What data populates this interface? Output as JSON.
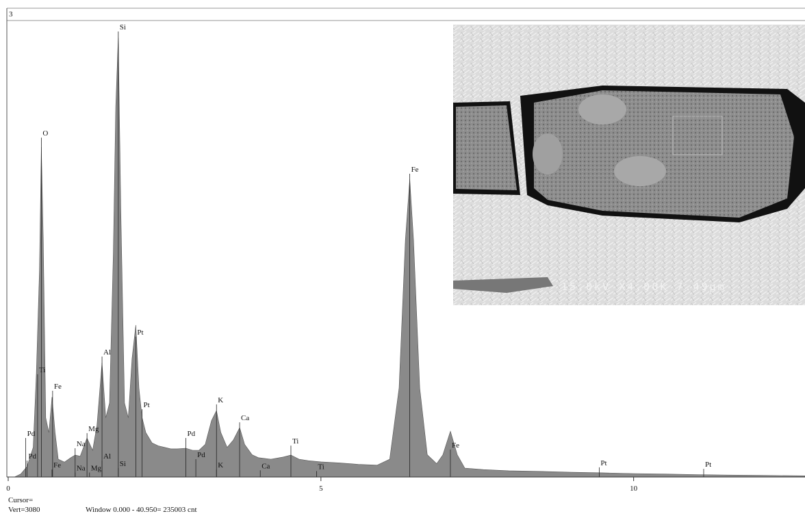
{
  "chart_data": {
    "type": "area",
    "title": "3",
    "color": "#8a8a8a",
    "x": [
      0.1,
      0.2,
      0.3,
      0.4,
      0.45,
      0.5,
      0.53,
      0.56,
      0.6,
      0.65,
      0.7,
      0.75,
      0.8,
      0.9,
      1.0,
      1.07,
      1.15,
      1.26,
      1.35,
      1.42,
      1.5,
      1.56,
      1.62,
      1.68,
      1.72,
      1.76,
      1.8,
      1.86,
      1.92,
      1.98,
      2.04,
      2.09,
      2.14,
      2.2,
      2.3,
      2.4,
      2.5,
      2.6,
      2.7,
      2.84,
      2.95,
      3.05,
      3.15,
      3.25,
      3.33,
      3.4,
      3.5,
      3.6,
      3.7,
      3.78,
      3.9,
      4.0,
      4.2,
      4.4,
      4.52,
      4.65,
      4.8,
      5.0,
      5.3,
      5.6,
      5.9,
      6.1,
      6.25,
      6.35,
      6.42,
      6.48,
      6.58,
      6.7,
      6.85,
      6.95,
      7.07,
      7.18,
      7.3,
      7.6,
      8.0,
      8.5,
      9.0,
      9.5,
      10.0,
      10.5,
      11.0,
      11.5,
      12.0,
      12.5,
      12.74
    ],
    "values": [
      0,
      20,
      70,
      200,
      700,
      1400,
      2226,
      1600,
      400,
      300,
      540,
      300,
      120,
      100,
      130,
      148,
      140,
      263,
      180,
      350,
      771,
      400,
      500,
      1500,
      2500,
      2965,
      1800,
      500,
      400,
      800,
      1025,
      600,
      402,
      300,
      230,
      210,
      200,
      190,
      190,
      194,
      180,
      180,
      220,
      380,
      448,
      300,
      200,
      250,
      333,
      220,
      150,
      130,
      120,
      135,
      148,
      120,
      110,
      102,
      95,
      85,
      80,
      120,
      600,
      1600,
      2009,
      1600,
      600,
      150,
      90,
      150,
      309,
      150,
      60,
      50,
      42,
      38,
      32,
      28,
      23,
      20,
      16,
      13,
      11,
      9,
      8
    ],
    "xlim": [
      0,
      12.74
    ],
    "ylim": [
      0,
      3080
    ],
    "xticks": [
      0,
      5,
      10
    ],
    "annotations": [
      {
        "text": "Pd",
        "x": 0.28,
        "y": 263
      },
      {
        "text": "Pd",
        "x": 0.3,
        "y": 111
      },
      {
        "text": "Ti",
        "x": 0.47,
        "y": 693
      },
      {
        "text": "O",
        "x": 0.53,
        "y": 2290
      },
      {
        "text": "Fe",
        "x": 0.71,
        "y": 582
      },
      {
        "text": "Na",
        "x": 1.07,
        "y": 194
      },
      {
        "text": "Mg",
        "x": 1.26,
        "y": 296
      },
      {
        "text": "Al",
        "x": 1.5,
        "y": 813
      },
      {
        "text": "Si",
        "x": 1.76,
        "y": 3006
      },
      {
        "text": "Pt",
        "x": 2.04,
        "y": 947
      },
      {
        "text": "Pt",
        "x": 2.14,
        "y": 457
      },
      {
        "text": "Pd",
        "x": 2.84,
        "y": 263
      },
      {
        "text": "K",
        "x": 3.33,
        "y": 490
      },
      {
        "text": "Ca",
        "x": 3.7,
        "y": 369
      },
      {
        "text": "Ti",
        "x": 4.52,
        "y": 212
      },
      {
        "text": "Fe",
        "x": 6.42,
        "y": 2046
      },
      {
        "text": "Fe",
        "x": 7.07,
        "y": 185
      },
      {
        "text": "Pt",
        "x": 9.45,
        "y": 65
      },
      {
        "text": "Pt",
        "x": 11.12,
        "y": 55
      },
      {
        "text": "Fe",
        "x": 0.7,
        "y": 50
      },
      {
        "text": "Na",
        "x": 1.07,
        "y": 30
      },
      {
        "text": "Mg",
        "x": 1.3,
        "y": 30
      },
      {
        "text": "Al",
        "x": 1.5,
        "y": 110
      },
      {
        "text": "Si",
        "x": 1.76,
        "y": 60
      },
      {
        "text": "Pd",
        "x": 3.0,
        "y": 120
      },
      {
        "text": "K",
        "x": 3.33,
        "y": 50
      },
      {
        "text": "Ca",
        "x": 4.03,
        "y": 45
      },
      {
        "text": "Ti",
        "x": 4.93,
        "y": 40
      }
    ],
    "cursor": "Cursor=",
    "vert": "Vert=3080",
    "window": "Window 0.000 - 40.950=  235003 cnt",
    "image_caption": "15.0kV X4.00K 7.49µm"
  }
}
